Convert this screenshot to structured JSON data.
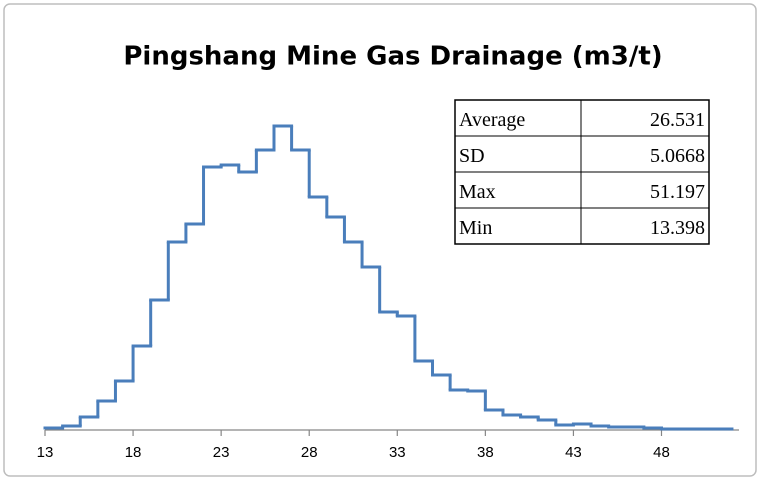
{
  "chart_data": {
    "type": "step_histogram",
    "title": "Pingshang Mine Gas Drainage (m3/t)",
    "bins": [
      13,
      14,
      15,
      16,
      17,
      18,
      19,
      20,
      21,
      22,
      23,
      24,
      25,
      26,
      27,
      28,
      29,
      30,
      31,
      32,
      33,
      34,
      35,
      36,
      37,
      38,
      39,
      40,
      41,
      42,
      43,
      44,
      45,
      46,
      47,
      48,
      49,
      50,
      51,
      52
    ],
    "values": [
      2,
      4,
      13,
      29,
      49,
      84,
      130,
      188,
      206,
      263,
      265,
      258,
      280,
      304,
      280,
      233,
      213,
      188,
      163,
      118,
      114,
      69,
      55,
      40,
      39,
      20,
      15,
      13,
      10,
      5,
      6,
      4,
      3,
      3,
      2,
      1,
      1,
      1,
      1
    ],
    "color": "#4a7ebb",
    "xlim": [
      13,
      52.4
    ],
    "xticks": [
      13,
      18,
      23,
      28,
      33,
      38,
      43,
      48
    ],
    "ylim": [
      0,
      320
    ],
    "stats_table": {
      "rows": [
        [
          "Average",
          26.531
        ],
        [
          "SD",
          5.0668
        ],
        [
          "Max",
          51.197
        ],
        [
          "Min",
          13.398
        ]
      ]
    }
  }
}
